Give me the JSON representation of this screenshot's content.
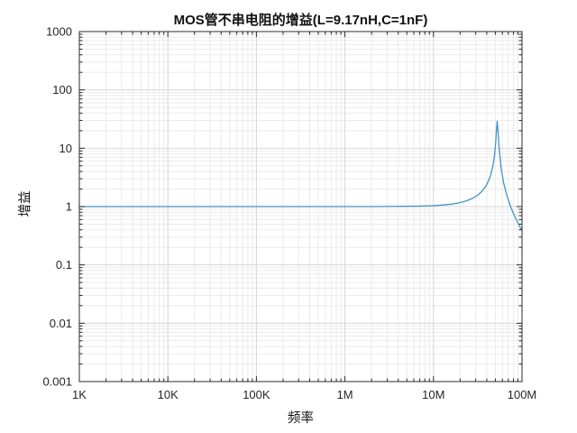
{
  "chart_data": {
    "type": "line",
    "title": "MOS管不串电阻的增益(L=9.17nH,C=1nF)",
    "xlabel": "频率",
    "ylabel": "增益",
    "x_scale": "log",
    "y_scale": "log",
    "xlim": [
      1000,
      100000000
    ],
    "ylim": [
      0.001,
      1000
    ],
    "x_ticks": [
      {
        "value": 1000,
        "label": "1K"
      },
      {
        "value": 10000,
        "label": "10K"
      },
      {
        "value": 100000,
        "label": "100K"
      },
      {
        "value": 1000000,
        "label": "1M"
      },
      {
        "value": 10000000,
        "label": "10M"
      },
      {
        "value": 100000000,
        "label": "100M"
      }
    ],
    "y_ticks": [
      {
        "value": 1000,
        "label": "1000"
      },
      {
        "value": 100,
        "label": "100"
      },
      {
        "value": 10,
        "label": "10"
      },
      {
        "value": 1,
        "label": "1"
      },
      {
        "value": 0.1,
        "label": "0.1"
      },
      {
        "value": 0.01,
        "label": "0.01"
      },
      {
        "value": 0.001,
        "label": "0.001"
      }
    ],
    "grid": {
      "major": true,
      "minor": true,
      "major_color": "#d6d6d6",
      "minor_color": "#ebebeb"
    },
    "axis_color": "#2b2b2b",
    "legend": null,
    "series": [
      {
        "name": "增益",
        "color": "#4292c6",
        "x": [
          1000,
          3000,
          10000,
          30000,
          100000,
          300000,
          1000000,
          2000000,
          3000000,
          5000000,
          7000000,
          10000000,
          13000000,
          16000000,
          20000000,
          24000000,
          28000000,
          32000000,
          36000000,
          40000000,
          44000000,
          47000000,
          49000000,
          50500000,
          51500000,
          52500000,
          53500000,
          55000000,
          58000000,
          62000000,
          68000000,
          75000000,
          85000000,
          100000000
        ],
        "y": [
          1.0,
          1.0,
          1.0,
          1.0,
          1.0,
          1.0,
          1.0004,
          1.0015,
          1.0033,
          1.0091,
          1.0181,
          1.0376,
          1.0652,
          1.1022,
          1.1694,
          1.2636,
          1.3965,
          1.5893,
          1.8843,
          2.377,
          3.344,
          4.998,
          7.656,
          13.0,
          21.0,
          29.0,
          21.0,
          10.5,
          4.587,
          2.551,
          1.483,
          0.964,
          0.619,
          0.382
        ]
      }
    ]
  }
}
